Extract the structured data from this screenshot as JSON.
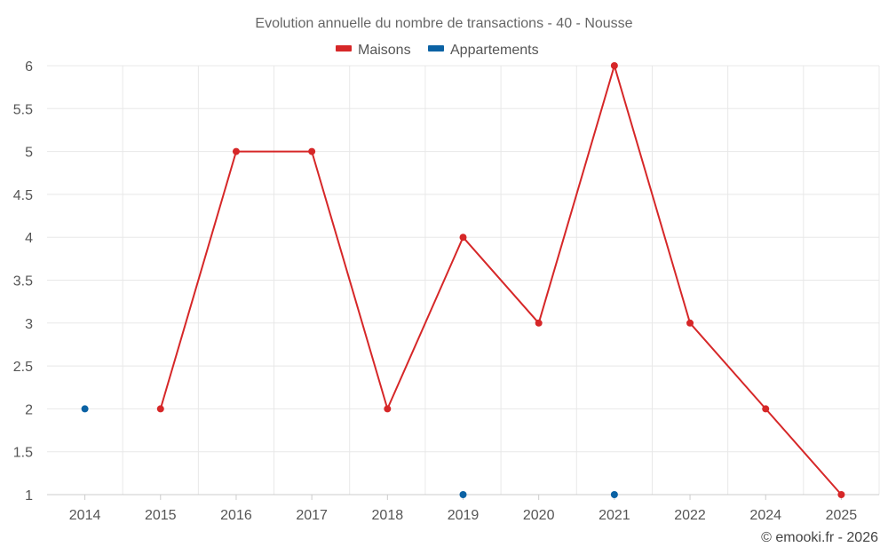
{
  "chart_data": {
    "type": "line",
    "title": "Evolution annuelle du nombre de transactions - 40 - Nousse",
    "categories": [
      "2014",
      "2015",
      "2016",
      "2017",
      "2018",
      "2019",
      "2020",
      "2021",
      "2022",
      "2024",
      "2025"
    ],
    "ylim": [
      1,
      6
    ],
    "y_ticks": [
      "1",
      "1.5",
      "2",
      "2.5",
      "3",
      "3.5",
      "4",
      "4.5",
      "5",
      "5.5",
      "6"
    ],
    "y_tick_values": [
      1,
      1.5,
      2,
      2.5,
      3,
      3.5,
      4,
      4.5,
      5,
      5.5,
      6
    ],
    "grid": true,
    "legend_position": "top-center",
    "series": [
      {
        "name": "Maisons",
        "color": "#d62728",
        "values": [
          null,
          2,
          5,
          5,
          2,
          4,
          3,
          6,
          3,
          2,
          1
        ]
      },
      {
        "name": "Appartements",
        "color": "#0b62a4",
        "values": [
          2,
          null,
          null,
          null,
          null,
          1,
          null,
          1,
          null,
          null,
          null
        ]
      }
    ],
    "credit": "© emooki.fr - 2026"
  }
}
